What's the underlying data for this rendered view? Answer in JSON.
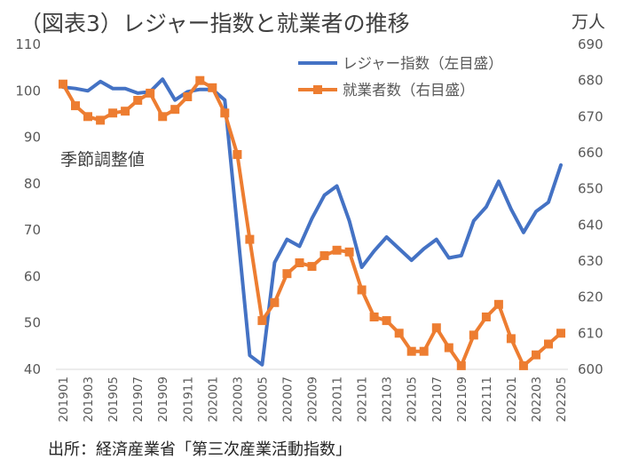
{
  "chart_data": {
    "type": "line",
    "title": "（図表3）レジャー指数と就業者の推移",
    "right_unit": "万人",
    "annotation": "季節調整値",
    "source": "出所：経済産業省「第三次産業活動指数」",
    "x": [
      "201901",
      "201902",
      "201903",
      "201904",
      "201905",
      "201906",
      "201907",
      "201908",
      "201909",
      "201910",
      "201911",
      "201912",
      "202001",
      "202002",
      "202003",
      "202004",
      "202005",
      "202006",
      "202007",
      "202008",
      "202009",
      "202010",
      "202011",
      "202012",
      "202101",
      "202102",
      "202103",
      "202104",
      "202105",
      "202106",
      "202107",
      "202108",
      "202109",
      "202110",
      "202111",
      "202112",
      "202201",
      "202202",
      "202203",
      "202204",
      "202205"
    ],
    "x_tick_labels": [
      "201901",
      "201903",
      "201905",
      "201907",
      "201909",
      "201911",
      "202001",
      "202003",
      "202005",
      "202007",
      "202009",
      "202011",
      "202101",
      "202103",
      "202105",
      "202107",
      "202109",
      "202111",
      "202201",
      "202203",
      "202205"
    ],
    "left_axis": {
      "ylim": [
        40,
        110
      ],
      "ticks": [
        40,
        50,
        60,
        70,
        80,
        90,
        100,
        110
      ]
    },
    "right_axis": {
      "ylim": [
        600,
        690
      ],
      "ticks": [
        600,
        610,
        620,
        630,
        640,
        650,
        660,
        670,
        680,
        690
      ]
    },
    "series": [
      {
        "name": "レジャー指数（左目盛）",
        "axis": "left",
        "color": "#4472C4",
        "marker": "none",
        "values": [
          100.8,
          100.5,
          100.0,
          102.0,
          100.5,
          100.5,
          99.5,
          99.8,
          102.5,
          98.0,
          99.8,
          100.3,
          100.3,
          98.0,
          70.5,
          43.0,
          41.0,
          63.0,
          68.0,
          66.5,
          72.5,
          77.5,
          79.5,
          72.0,
          62.0,
          65.5,
          68.5,
          66.0,
          63.5,
          66.0,
          68.0,
          64.0,
          64.5,
          72.0,
          75.0,
          80.5,
          74.5,
          69.5,
          74.0,
          76.0,
          84.0
        ]
      },
      {
        "name": "就業者数（右目盛）",
        "axis": "right",
        "color": "#ED7D31",
        "marker": "square",
        "values": [
          679,
          673,
          670,
          669,
          671,
          671.5,
          674.5,
          676.5,
          670,
          672,
          675.5,
          680,
          678,
          671,
          659.5,
          636,
          613.5,
          618.5,
          626.5,
          629.5,
          628.5,
          631.5,
          633,
          632.5,
          622,
          614.5,
          613.5,
          610,
          605,
          605,
          611.5,
          606,
          601,
          609.5,
          614.5,
          618,
          608.5,
          601,
          604,
          607,
          610
        ]
      }
    ],
    "grid": false,
    "legend": "top-right"
  }
}
